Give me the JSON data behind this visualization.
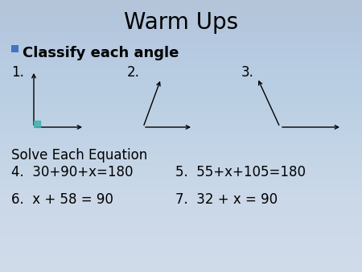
{
  "title": "Warm Ups",
  "title_fontsize": 20,
  "bg_color": "#ccd8e8",
  "bg_color_top": "#dde6f0",
  "text_color": "#000000",
  "bullet_color": "#4472c4",
  "right_angle_color": "#40b0b0",
  "classify_label": "Classify each angle",
  "classify_fontsize": 13,
  "solve_label": "Solve Each Equation",
  "solve_fontsize": 12,
  "eq4": "4.  30+90+x=180",
  "eq5": "5.  55+x+105=180",
  "eq6": "6.  x + 58 = 90",
  "eq7": "7.  32 + x = 90",
  "eq_fontsize": 12,
  "num_fontsize": 12,
  "angle1_label": "1.",
  "angle2_label": "2.",
  "angle3_label": "3."
}
